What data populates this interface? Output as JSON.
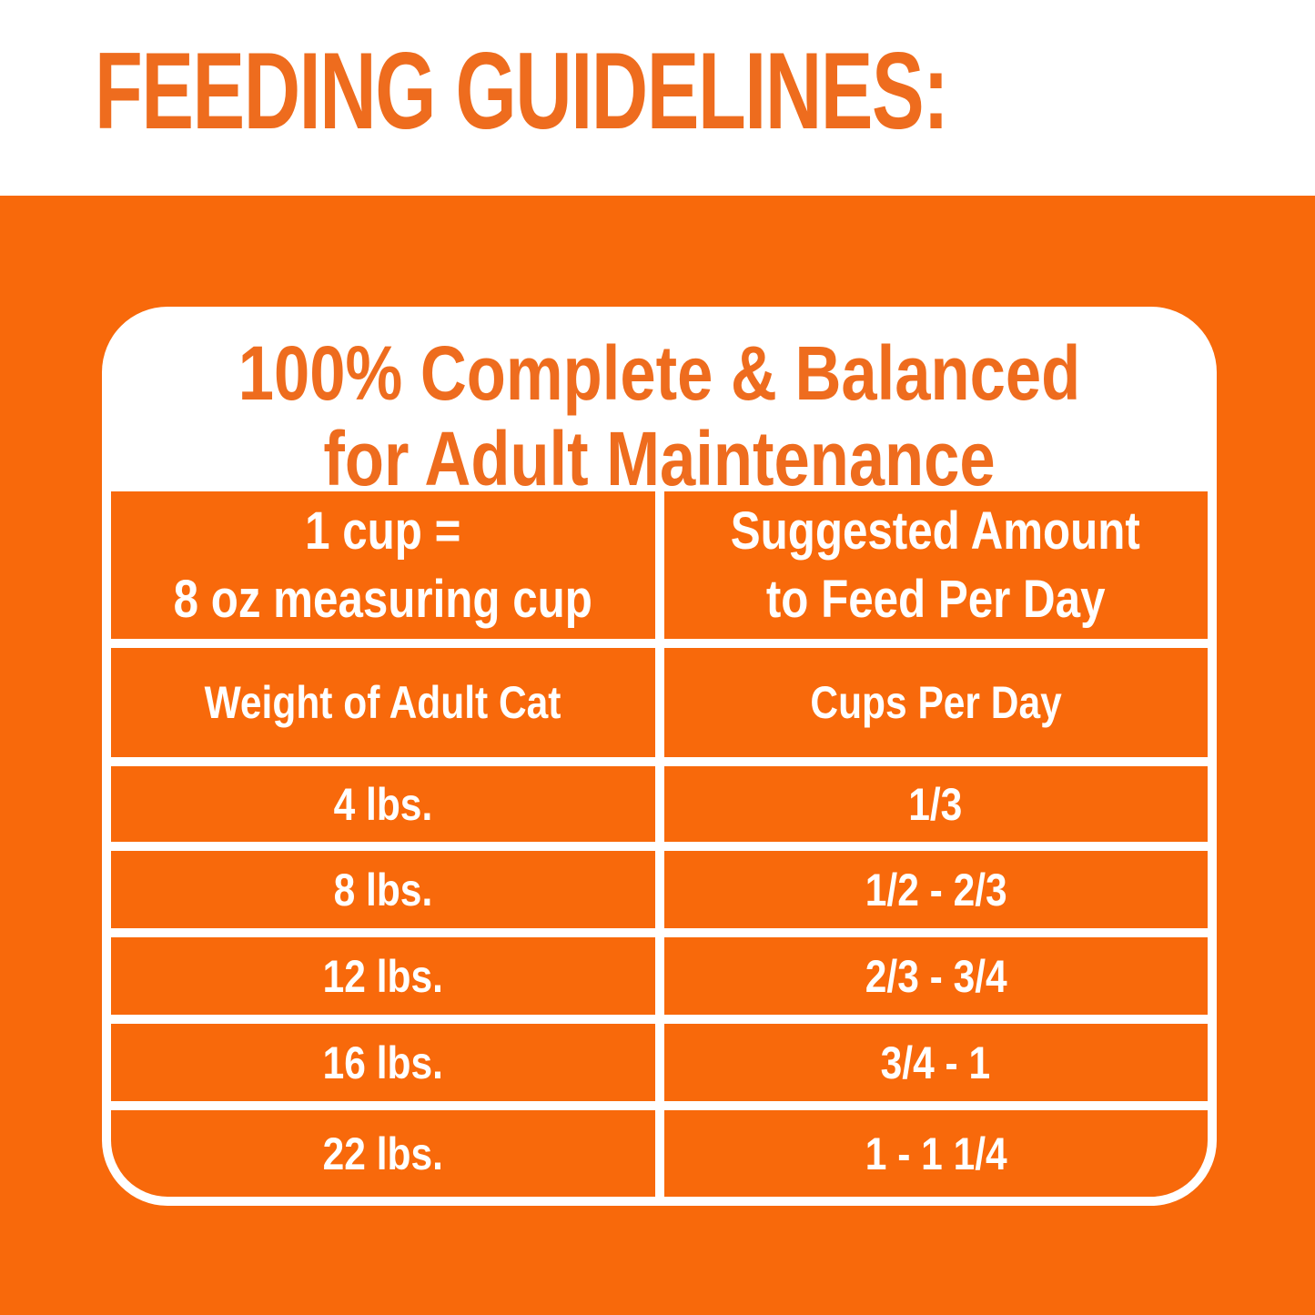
{
  "colors": {
    "orange": "#F8690B",
    "title_orange": "#EE6C1E",
    "white": "#FFFFFF"
  },
  "header": {
    "title": "FEEDING GUIDELINES:"
  },
  "card": {
    "title_line1": "100% Complete & Balanced",
    "title_line2": "for Adult Maintenance"
  },
  "table": {
    "measure_header": {
      "line1": "1 cup =",
      "line2": "8 oz measuring cup"
    },
    "amount_header": {
      "line1": "Suggested Amount",
      "line2": "to Feed Per Day"
    },
    "columns": {
      "weight": "Weight of Adult Cat",
      "cups": "Cups Per Day"
    },
    "rows": [
      {
        "weight": "4 lbs.",
        "cups": "1/3"
      },
      {
        "weight": "8 lbs.",
        "cups": "1/2 - 2/3"
      },
      {
        "weight": "12 lbs.",
        "cups": "2/3 - 3/4"
      },
      {
        "weight": "16 lbs.",
        "cups": "3/4 - 1"
      },
      {
        "weight": "22 lbs.",
        "cups": "1 - 1 1/4"
      }
    ]
  }
}
